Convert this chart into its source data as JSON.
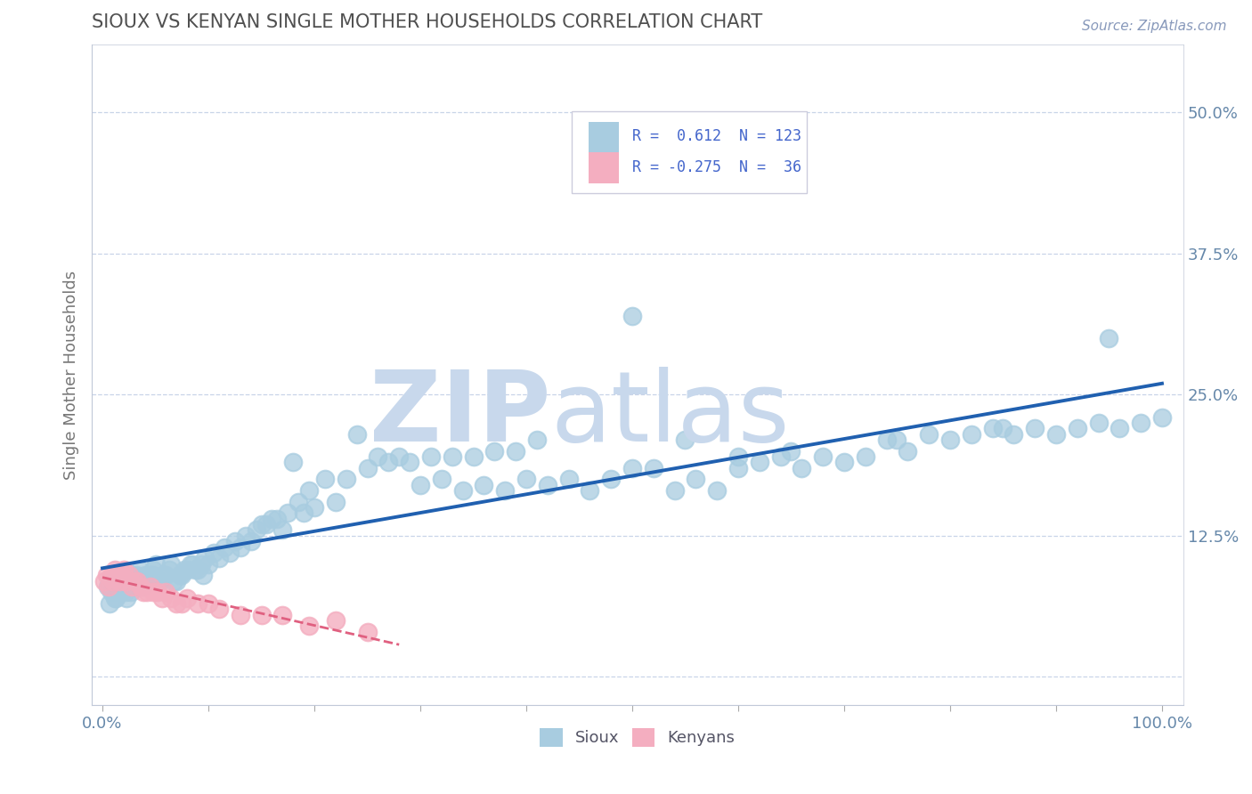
{
  "title": "SIOUX VS KENYAN SINGLE MOTHER HOUSEHOLDS CORRELATION CHART",
  "source_text": "Source: ZipAtlas.com",
  "ylabel": "Single Mother Households",
  "xlim": [
    -0.01,
    1.02
  ],
  "ylim": [
    -0.025,
    0.56
  ],
  "xticks": [
    0.0,
    0.1,
    0.2,
    0.3,
    0.4,
    0.5,
    0.6,
    0.7,
    0.8,
    0.9,
    1.0
  ],
  "yticks": [
    0.0,
    0.125,
    0.25,
    0.375,
    0.5
  ],
  "ytick_labels": [
    "",
    "12.5%",
    "25.0%",
    "37.5%",
    "50.0%"
  ],
  "xtick_labels": [
    "0.0%",
    "",
    "",
    "",
    "",
    "",
    "",
    "",
    "",
    "",
    "100.0%"
  ],
  "sioux_color": "#a8cce0",
  "kenyan_color": "#f4aec0",
  "sioux_line_color": "#2060b0",
  "kenyan_line_color": "#e06080",
  "title_color": "#505050",
  "watermark_zip_color": "#c8d8ec",
  "watermark_atlas_color": "#c8d8ec",
  "grid_color": "#c8d4e8",
  "background_color": "#ffffff",
  "tick_color": "#aaaaaa",
  "label_color": "#6688aa",
  "sioux_x": [
    0.005,
    0.008,
    0.01,
    0.012,
    0.015,
    0.018,
    0.02,
    0.022,
    0.025,
    0.028,
    0.03,
    0.032,
    0.035,
    0.038,
    0.04,
    0.042,
    0.045,
    0.048,
    0.05,
    0.055,
    0.06,
    0.065,
    0.07,
    0.075,
    0.08,
    0.085,
    0.09,
    0.095,
    0.1,
    0.11,
    0.12,
    0.13,
    0.14,
    0.15,
    0.16,
    0.17,
    0.18,
    0.19,
    0.2,
    0.22,
    0.24,
    0.26,
    0.28,
    0.3,
    0.32,
    0.34,
    0.36,
    0.38,
    0.4,
    0.42,
    0.44,
    0.46,
    0.48,
    0.5,
    0.52,
    0.54,
    0.56,
    0.58,
    0.6,
    0.62,
    0.64,
    0.66,
    0.68,
    0.7,
    0.72,
    0.74,
    0.76,
    0.78,
    0.8,
    0.82,
    0.84,
    0.86,
    0.88,
    0.9,
    0.92,
    0.94,
    0.96,
    0.98,
    1.0,
    0.007,
    0.013,
    0.017,
    0.023,
    0.027,
    0.033,
    0.037,
    0.043,
    0.047,
    0.053,
    0.057,
    0.063,
    0.067,
    0.073,
    0.077,
    0.083,
    0.087,
    0.093,
    0.097,
    0.105,
    0.115,
    0.125,
    0.135,
    0.145,
    0.155,
    0.165,
    0.175,
    0.185,
    0.195,
    0.21,
    0.23,
    0.25,
    0.27,
    0.29,
    0.31,
    0.33,
    0.35,
    0.37,
    0.39,
    0.41,
    0.5,
    0.55,
    0.6,
    0.65,
    0.75,
    0.85,
    0.95
  ],
  "sioux_y": [
    0.08,
    0.075,
    0.085,
    0.07,
    0.09,
    0.08,
    0.085,
    0.075,
    0.08,
    0.09,
    0.085,
    0.09,
    0.095,
    0.08,
    0.09,
    0.085,
    0.09,
    0.095,
    0.1,
    0.085,
    0.09,
    0.1,
    0.085,
    0.09,
    0.095,
    0.1,
    0.095,
    0.09,
    0.1,
    0.105,
    0.11,
    0.115,
    0.12,
    0.135,
    0.14,
    0.13,
    0.19,
    0.145,
    0.15,
    0.155,
    0.215,
    0.195,
    0.195,
    0.17,
    0.175,
    0.165,
    0.17,
    0.165,
    0.175,
    0.17,
    0.175,
    0.165,
    0.175,
    0.185,
    0.185,
    0.165,
    0.175,
    0.165,
    0.185,
    0.19,
    0.195,
    0.185,
    0.195,
    0.19,
    0.195,
    0.21,
    0.2,
    0.215,
    0.21,
    0.215,
    0.22,
    0.215,
    0.22,
    0.215,
    0.22,
    0.225,
    0.22,
    0.225,
    0.23,
    0.065,
    0.07,
    0.075,
    0.07,
    0.075,
    0.08,
    0.085,
    0.085,
    0.09,
    0.085,
    0.09,
    0.095,
    0.085,
    0.09,
    0.095,
    0.1,
    0.095,
    0.1,
    0.105,
    0.11,
    0.115,
    0.12,
    0.125,
    0.13,
    0.135,
    0.14,
    0.145,
    0.155,
    0.165,
    0.175,
    0.175,
    0.185,
    0.19,
    0.19,
    0.195,
    0.195,
    0.195,
    0.2,
    0.2,
    0.21,
    0.32,
    0.21,
    0.195,
    0.2,
    0.21,
    0.22,
    0.3
  ],
  "kenyan_x": [
    0.002,
    0.004,
    0.006,
    0.008,
    0.01,
    0.012,
    0.014,
    0.016,
    0.018,
    0.02,
    0.022,
    0.025,
    0.028,
    0.03,
    0.033,
    0.036,
    0.039,
    0.042,
    0.045,
    0.048,
    0.052,
    0.056,
    0.06,
    0.065,
    0.07,
    0.075,
    0.08,
    0.09,
    0.1,
    0.11,
    0.13,
    0.15,
    0.17,
    0.195,
    0.22,
    0.25
  ],
  "kenyan_y": [
    0.085,
    0.09,
    0.08,
    0.09,
    0.085,
    0.095,
    0.09,
    0.085,
    0.09,
    0.095,
    0.085,
    0.09,
    0.08,
    0.085,
    0.085,
    0.08,
    0.075,
    0.075,
    0.08,
    0.075,
    0.075,
    0.07,
    0.075,
    0.07,
    0.065,
    0.065,
    0.07,
    0.065,
    0.065,
    0.06,
    0.055,
    0.055,
    0.055,
    0.045,
    0.05,
    0.04
  ]
}
